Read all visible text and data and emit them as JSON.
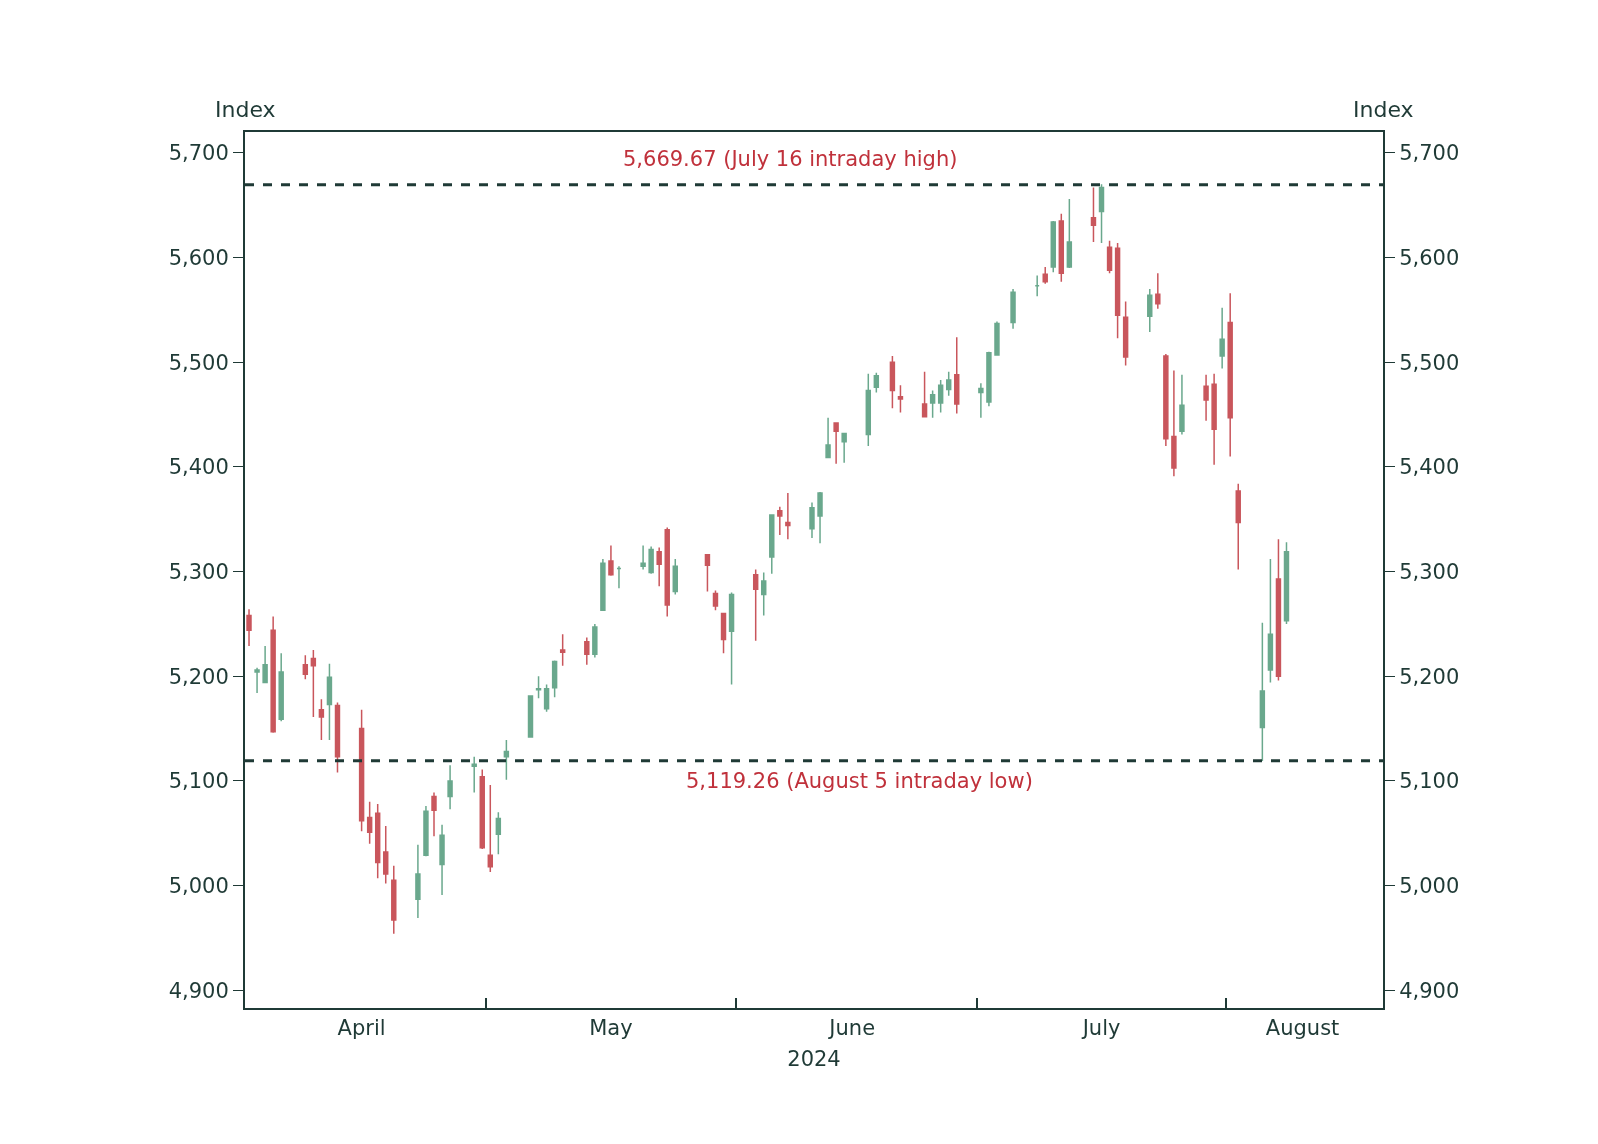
{
  "chart_data": {
    "type": "candlestick",
    "x": [
      "2024-04-01",
      "2024-04-02",
      "2024-04-03",
      "2024-04-04",
      "2024-04-05",
      "2024-04-08",
      "2024-04-09",
      "2024-04-10",
      "2024-04-11",
      "2024-04-12",
      "2024-04-15",
      "2024-04-16",
      "2024-04-17",
      "2024-04-18",
      "2024-04-19",
      "2024-04-22",
      "2024-04-23",
      "2024-04-24",
      "2024-04-25",
      "2024-04-26",
      "2024-04-29",
      "2024-04-30",
      "2024-05-01",
      "2024-05-02",
      "2024-05-03",
      "2024-05-06",
      "2024-05-07",
      "2024-05-08",
      "2024-05-09",
      "2024-05-10",
      "2024-05-13",
      "2024-05-14",
      "2024-05-15",
      "2024-05-16",
      "2024-05-17",
      "2024-05-20",
      "2024-05-21",
      "2024-05-22",
      "2024-05-23",
      "2024-05-24",
      "2024-05-28",
      "2024-05-29",
      "2024-05-30",
      "2024-05-31",
      "2024-06-03",
      "2024-06-04",
      "2024-06-05",
      "2024-06-06",
      "2024-06-07",
      "2024-06-10",
      "2024-06-11",
      "2024-06-12",
      "2024-06-13",
      "2024-06-14",
      "2024-06-17",
      "2024-06-18",
      "2024-06-20",
      "2024-06-21",
      "2024-06-24",
      "2024-06-25",
      "2024-06-26",
      "2024-06-27",
      "2024-06-28",
      "2024-07-01",
      "2024-07-02",
      "2024-07-03",
      "2024-07-05",
      "2024-07-08",
      "2024-07-09",
      "2024-07-10",
      "2024-07-11",
      "2024-07-12",
      "2024-07-15",
      "2024-07-16",
      "2024-07-17",
      "2024-07-18",
      "2024-07-19",
      "2024-07-22",
      "2024-07-23",
      "2024-07-24",
      "2024-07-25",
      "2024-07-26",
      "2024-07-29",
      "2024-07-30",
      "2024-07-31",
      "2024-08-01",
      "2024-08-02",
      "2024-08-05",
      "2024-08-06",
      "2024-08-07",
      "2024-08-08"
    ],
    "ohlc": [
      [
        5258,
        5264,
        5229,
        5244
      ],
      [
        5204,
        5208,
        5184,
        5206
      ],
      [
        5194,
        5229,
        5194,
        5211
      ],
      [
        5244,
        5257,
        5146,
        5147
      ],
      [
        5159,
        5222,
        5157,
        5204
      ],
      [
        5211,
        5220,
        5197,
        5202
      ],
      [
        5217,
        5225,
        5161,
        5210
      ],
      [
        5168,
        5178,
        5139,
        5161
      ],
      [
        5173,
        5212,
        5139,
        5199
      ],
      [
        5172,
        5175,
        5108,
        5123
      ],
      [
        5150,
        5168,
        5052,
        5062
      ],
      [
        5065,
        5080,
        5040,
        5051
      ],
      [
        5069,
        5078,
        5007,
        5022
      ],
      [
        5032,
        5057,
        5002,
        5011
      ],
      [
        5005,
        5019,
        4954,
        4967
      ],
      [
        4987,
        5039,
        4969,
        5011
      ],
      [
        5029,
        5076,
        5028,
        5071
      ],
      [
        5085,
        5089,
        5047,
        5072
      ],
      [
        5020,
        5058,
        4991,
        5048
      ],
      [
        5085,
        5115,
        5073,
        5100
      ],
      [
        5114,
        5123,
        5089,
        5116
      ],
      [
        5104,
        5111,
        5035,
        5036
      ],
      [
        5029,
        5096,
        5013,
        5018
      ],
      [
        5049,
        5070,
        5030,
        5064
      ],
      [
        5123,
        5139,
        5101,
        5128
      ],
      [
        5142,
        5181,
        5142,
        5181
      ],
      [
        5187,
        5200,
        5179,
        5188
      ],
      [
        5169,
        5192,
        5166,
        5188
      ],
      [
        5189,
        5215,
        5180,
        5214
      ],
      [
        5225,
        5240,
        5210,
        5223
      ],
      [
        5233,
        5237,
        5211,
        5221
      ],
      [
        5221,
        5250,
        5218,
        5247
      ],
      [
        5263,
        5312,
        5263,
        5308
      ],
      [
        5310,
        5325,
        5296,
        5297
      ],
      [
        5303,
        5305,
        5284,
        5303
      ],
      [
        5305,
        5325,
        5302,
        5308
      ],
      [
        5299,
        5324,
        5298,
        5321
      ],
      [
        5319,
        5323,
        5286,
        5307
      ],
      [
        5340,
        5342,
        5257,
        5268
      ],
      [
        5281,
        5312,
        5278,
        5305
      ],
      [
        5316,
        5316,
        5281,
        5306
      ],
      [
        5279,
        5282,
        5263,
        5267
      ],
      [
        5260,
        5260,
        5222,
        5235
      ],
      [
        5243,
        5280,
        5192,
        5278
      ],
      [
        5297,
        5302,
        5234,
        5283
      ],
      [
        5278,
        5299,
        5258,
        5291
      ],
      [
        5314,
        5354,
        5298,
        5354
      ],
      [
        5358,
        5362,
        5335,
        5353
      ],
      [
        5344,
        5375,
        5331,
        5347
      ],
      [
        5341,
        5366,
        5332,
        5361
      ],
      [
        5353,
        5376,
        5327,
        5375
      ],
      [
        5409,
        5447,
        5409,
        5421
      ],
      [
        5442,
        5442,
        5403,
        5434
      ],
      [
        5424,
        5432,
        5404,
        5432
      ],
      [
        5431,
        5489,
        5420,
        5473
      ],
      [
        5476,
        5490,
        5471,
        5487
      ],
      [
        5500,
        5506,
        5456,
        5473
      ],
      [
        5467,
        5478,
        5452,
        5465
      ],
      [
        5460,
        5491,
        5448,
        5448
      ],
      [
        5461,
        5473,
        5447,
        5469
      ],
      [
        5461,
        5483,
        5452,
        5478
      ],
      [
        5474,
        5491,
        5468,
        5483
      ],
      [
        5488,
        5524,
        5451,
        5460
      ],
      [
        5471,
        5480,
        5447,
        5475
      ],
      [
        5462,
        5510,
        5458,
        5509
      ],
      [
        5507,
        5539,
        5507,
        5537
      ],
      [
        5538,
        5570,
        5532,
        5567
      ],
      [
        5573,
        5583,
        5563,
        5573
      ],
      [
        5584,
        5591,
        5575,
        5577
      ],
      [
        5591,
        5635,
        5586,
        5634
      ],
      [
        5635,
        5642,
        5577,
        5585
      ],
      [
        5591,
        5656,
        5590,
        5615
      ],
      [
        5638,
        5667,
        5615,
        5631
      ],
      [
        5644,
        5670,
        5614,
        5667
      ],
      [
        5610,
        5616,
        5585,
        5588
      ],
      [
        5609,
        5614,
        5523,
        5545
      ],
      [
        5543,
        5558,
        5497,
        5505
      ],
      [
        5544,
        5570,
        5529,
        5564
      ],
      [
        5565,
        5585,
        5551,
        5556
      ],
      [
        5506,
        5508,
        5420,
        5427
      ],
      [
        5429,
        5492,
        5391,
        5399
      ],
      [
        5434,
        5488,
        5431,
        5459
      ],
      [
        5477,
        5488,
        5444,
        5464
      ],
      [
        5479,
        5489,
        5402,
        5436
      ],
      [
        5506,
        5552,
        5494,
        5522
      ],
      [
        5538,
        5566,
        5410,
        5447
      ],
      [
        5377,
        5384,
        5302,
        5347
      ],
      [
        5151,
        5251,
        5119,
        5186
      ],
      [
        5206,
        5312,
        5194,
        5240
      ],
      [
        5293,
        5331,
        5196,
        5200
      ],
      [
        5253,
        5328,
        5250,
        5319
      ]
    ],
    "colors": [
      "#c9565c",
      "#6aa88d",
      "#6aa88d",
      "#c9565c",
      "#6aa88d",
      "#c9565c",
      "#c9565c",
      "#c9565c",
      "#6aa88d",
      "#c9565c",
      "#c9565c",
      "#c9565c",
      "#c9565c",
      "#c9565c",
      "#c9565c",
      "#6aa88d",
      "#6aa88d",
      "#c9565c",
      "#6aa88d",
      "#6aa88d",
      "#6aa88d",
      "#c9565c",
      "#c9565c",
      "#6aa88d",
      "#6aa88d",
      "#6aa88d",
      "#6aa88d",
      "#6aa88d",
      "#6aa88d",
      "#c9565c",
      "#c9565c",
      "#6aa88d",
      "#6aa88d",
      "#c9565c",
      "#6aa88d",
      "#6aa88d",
      "#6aa88d",
      "#c9565c",
      "#c9565c",
      "#6aa88d",
      "#c9565c",
      "#c9565c",
      "#c9565c",
      "#6aa88d",
      "#c9565c",
      "#6aa88d",
      "#6aa88d",
      "#c9565c",
      "#c9565c",
      "#6aa88d",
      "#6aa88d",
      "#6aa88d",
      "#c9565c",
      "#6aa88d",
      "#6aa88d",
      "#6aa88d",
      "#c9565c",
      "#c9565c",
      "#c9565c",
      "#6aa88d",
      "#6aa88d",
      "#6aa88d",
      "#c9565c",
      "#6aa88d",
      "#6aa88d",
      "#6aa88d",
      "#6aa88d",
      "#6aa88d",
      "#c9565c",
      "#6aa88d",
      "#c9565c",
      "#6aa88d",
      "#c9565c",
      "#6aa88d",
      "#c9565c",
      "#c9565c",
      "#c9565c",
      "#6aa88d",
      "#c9565c",
      "#c9565c",
      "#c9565c",
      "#6aa88d",
      "#c9565c",
      "#c9565c",
      "#6aa88d",
      "#c9565c",
      "#c9565c",
      "#6aa88d",
      "#6aa88d",
      "#c9565c",
      "#6aa88d"
    ],
    "xlabel": "2024",
    "ylabel": "Index",
    "y2label": "Index",
    "xlim": [
      "2024-03-31T12:00",
      "2024-08-20"
    ],
    "xticks": [
      {
        "value": "2024-04-15",
        "label": "April"
      },
      {
        "value": "2024-04-30T12:00",
        "label": null
      },
      {
        "value": "2024-05-16",
        "label": "May"
      },
      {
        "value": "2024-05-31T12:00",
        "label": null
      },
      {
        "value": "2024-06-15",
        "label": "June"
      },
      {
        "value": "2024-06-30T12:00",
        "label": null
      },
      {
        "value": "2024-07-16",
        "label": "July"
      },
      {
        "value": "2024-07-31T12:00",
        "label": null
      },
      {
        "value": "2024-08-10",
        "label": "August"
      }
    ],
    "ylim": [
      4883,
      5720
    ],
    "yticks": [
      {
        "value": 4900,
        "label": "4,900"
      },
      {
        "value": 5000,
        "label": "5,000"
      },
      {
        "value": 5100,
        "label": "5,100"
      },
      {
        "value": 5200,
        "label": "5,200"
      },
      {
        "value": 5300,
        "label": "5,300"
      },
      {
        "value": 5400,
        "label": "5,400"
      },
      {
        "value": 5500,
        "label": "5,500"
      },
      {
        "value": 5600,
        "label": "5,600"
      },
      {
        "value": 5700,
        "label": "5,700"
      }
    ],
    "y2lim": [
      4883,
      5720
    ],
    "y2ticks": [
      {
        "value": 4900,
        "label": "4,900"
      },
      {
        "value": 5000,
        "label": "5,000"
      },
      {
        "value": 5100,
        "label": "5,100"
      },
      {
        "value": 5200,
        "label": "5,200"
      },
      {
        "value": 5300,
        "label": "5,300"
      },
      {
        "value": 5400,
        "label": "5,400"
      },
      {
        "value": 5500,
        "label": "5,500"
      },
      {
        "value": 5600,
        "label": "5,600"
      },
      {
        "value": 5700,
        "label": "5,700"
      }
    ],
    "ref_lines": [
      {
        "axis": "y",
        "value": 5669.67,
        "label": "5,669.67 (July 16 intraday high)",
        "color": "#1f3a36",
        "line_style": "dashed"
      },
      {
        "axis": "y",
        "value": 5119.26,
        "label": "5,119.26 (August 5 intraday low)",
        "color": "#1f3a36",
        "line_style": "dashed"
      }
    ]
  }
}
